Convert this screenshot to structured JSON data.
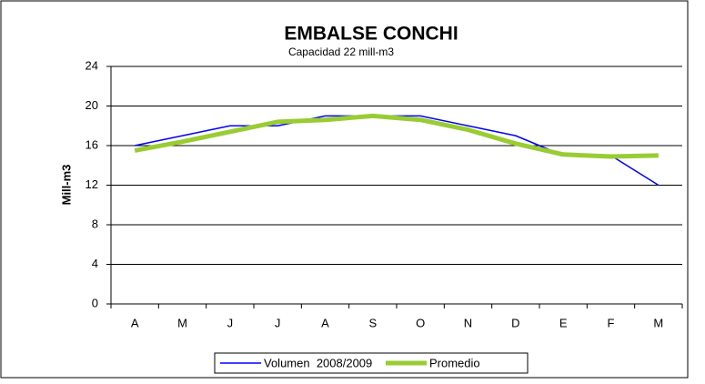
{
  "chart_data": {
    "type": "line",
    "title": "EMBALSE CONCHI",
    "subtitle": "Capacidad 22 mill-m3",
    "y_label": "Mill-m3",
    "categories": [
      "A",
      "M",
      "J",
      "J",
      "A",
      "S",
      "O",
      "N",
      "D",
      "E",
      "F",
      "M"
    ],
    "series": [
      {
        "name": "Volumen  2008/2009",
        "color": "#0000ff",
        "values": [
          16,
          17,
          18,
          18,
          19,
          19,
          19,
          18,
          17,
          15,
          15,
          12
        ]
      },
      {
        "name": "Promedio",
        "color": "#99cc33",
        "values": [
          15.5,
          16.4,
          17.4,
          18.4,
          18.6,
          19.0,
          18.6,
          17.6,
          16.2,
          15.1,
          14.9,
          15.0
        ]
      }
    ],
    "ylim": [
      0,
      24
    ],
    "yticks": [
      0,
      4,
      8,
      12,
      16,
      20,
      24
    ],
    "grid": true,
    "legend": "bottom"
  }
}
